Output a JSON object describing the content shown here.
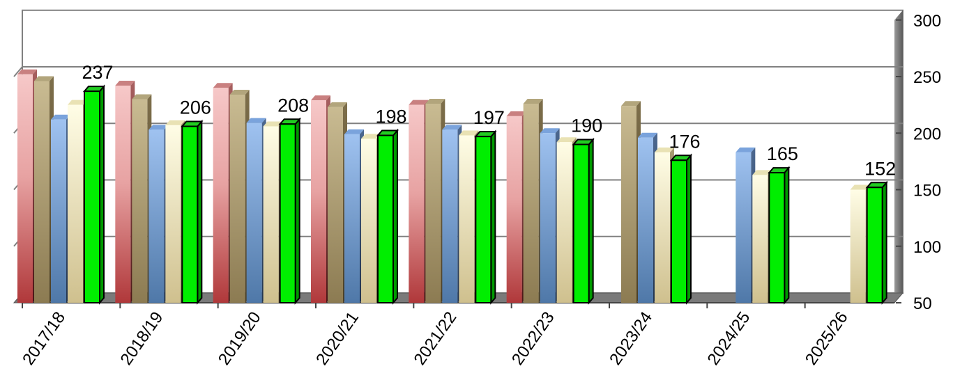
{
  "chart_data": {
    "type": "bar",
    "style": "3d-clustered-bar",
    "categories": [
      "2017/18",
      "2018/19",
      "2019/20",
      "2020/21",
      "2021/22",
      "2022/23",
      "2023/24",
      "2024/25",
      "2025/26"
    ],
    "series": [
      {
        "color": "#c0504d",
        "values": [
          252,
          242,
          240,
          229,
          225,
          215,
          null,
          null,
          null
        ]
      },
      {
        "color": "#9c8a5e",
        "values": [
          246,
          230,
          234,
          223,
          226,
          226,
          224,
          null,
          null
        ]
      },
      {
        "color": "#5b8fd6",
        "values": [
          212,
          203,
          209,
          199,
          203,
          200,
          196,
          183,
          null
        ]
      },
      {
        "color": "#f2eebe",
        "values": [
          225,
          207,
          206,
          195,
          198,
          192,
          183,
          163,
          150
        ]
      },
      {
        "color": "#00ee00",
        "values": [
          237,
          206,
          208,
          198,
          197,
          190,
          176,
          165,
          152
        ],
        "data_labels": [
          "237",
          "206",
          "208",
          "198",
          "197",
          "190",
          "176",
          "165",
          "152"
        ]
      }
    ],
    "y_ticks": [
      "300",
      "250",
      "200",
      "150",
      "100",
      "50"
    ],
    "ylim": [
      50,
      300
    ],
    "y_axis_position": "right",
    "grid": true,
    "legend": "none",
    "title": "",
    "xlabel": "",
    "ylabel": ""
  }
}
